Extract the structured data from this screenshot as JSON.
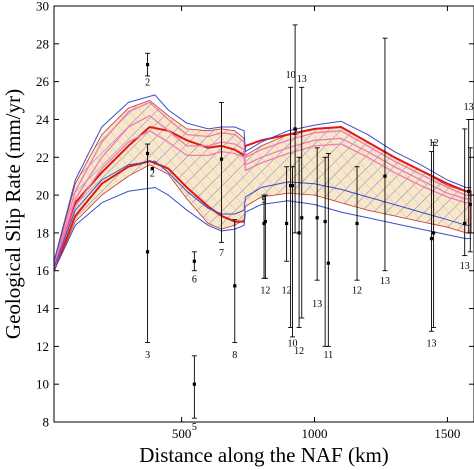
{
  "chart_data": {
    "type": "line",
    "xlabel": "Distance along the NAF (km)",
    "ylabel": "Geological Slip Rate (mm/yr)",
    "xlim": [
      20,
      1600
    ],
    "ylim": [
      8,
      30
    ],
    "x_ticks": [
      500,
      1000,
      1500
    ],
    "y_ticks": [
      8,
      10,
      12,
      14,
      16,
      18,
      20,
      22,
      24,
      26,
      28,
      30
    ],
    "grid": false,
    "legend": "none",
    "colors": {
      "band_fill": "#f7e8c8",
      "band_outline": "#c0392b",
      "red_line": "#e01818",
      "pink_line": "#f07ab5",
      "blue_line": "#3b4ec8"
    },
    "band": {
      "x": [
        20,
        100,
        200,
        300,
        380,
        450,
        520,
        600,
        650,
        700,
        735,
        740,
        800,
        900,
        1000,
        1100,
        1200,
        1300,
        1400,
        1500,
        1570,
        1590
      ],
      "upper": [
        16.4,
        20.6,
        23.2,
        24.6,
        25.0,
        24.2,
        23.5,
        23.4,
        23.5,
        23.4,
        23.0,
        22.1,
        22.6,
        23.2,
        23.5,
        23.6,
        22.8,
        22.0,
        21.3,
        20.5,
        20.2,
        20.2
      ],
      "lower": [
        16.0,
        18.6,
        20.0,
        21.0,
        21.6,
        21.1,
        19.8,
        18.5,
        18.2,
        18.4,
        18.7,
        19.4,
        19.9,
        20.1,
        20.0,
        19.6,
        19.2,
        18.9,
        18.6,
        18.3,
        18.0,
        18.0
      ]
    },
    "series": [
      {
        "line_style": "red",
        "x": [
          20,
          100,
          200,
          300,
          380,
          450,
          520,
          600,
          650,
          700,
          735,
          740,
          800,
          900,
          1000,
          1100,
          1200,
          1300,
          1400,
          1500,
          1570,
          1590
        ],
        "values": [
          16.2,
          19.6,
          21.2,
          22.6,
          23.6,
          23.4,
          22.9,
          22.5,
          22.6,
          22.4,
          22.1,
          22.6,
          22.9,
          23.2,
          23.5,
          23.6,
          22.8,
          22.0,
          21.3,
          20.6,
          20.2,
          20.2
        ]
      },
      {
        "line_style": "red",
        "x": [
          20,
          100,
          200,
          300,
          380,
          450,
          520,
          600,
          650,
          700,
          735
        ],
        "values": [
          16.0,
          18.9,
          20.6,
          21.5,
          21.8,
          21.4,
          20.4,
          19.4,
          18.9,
          18.6,
          18.6
        ]
      },
      {
        "line_style": "pink",
        "x": [
          20,
          100,
          200,
          300,
          380,
          450,
          520,
          600,
          650,
          700,
          735,
          740,
          800,
          900,
          1000,
          1100,
          1200,
          1300,
          1400,
          1500,
          1570,
          1590
        ],
        "values": [
          16.3,
          20.2,
          22.8,
          24.4,
          24.9,
          24.0,
          23.2,
          23.1,
          23.3,
          23.2,
          22.8,
          22.0,
          22.4,
          22.9,
          23.3,
          23.4,
          22.6,
          21.8,
          21.1,
          20.4,
          20.0,
          20.0
        ]
      },
      {
        "line_style": "pink",
        "x": [
          20,
          100,
          200,
          300,
          380,
          450,
          520,
          600,
          650,
          700,
          735,
          740,
          800,
          900,
          1000,
          1100,
          1200,
          1300,
          1400,
          1500,
          1570,
          1590
        ],
        "values": [
          16.2,
          19.8,
          22.0,
          23.6,
          24.2,
          23.4,
          22.6,
          22.6,
          22.8,
          22.7,
          22.4,
          21.6,
          22.0,
          22.5,
          22.9,
          23.0,
          22.3,
          21.5,
          20.8,
          20.1,
          19.8,
          19.8
        ]
      },
      {
        "line_style": "pink",
        "x": [
          20,
          100,
          200,
          300,
          380,
          450,
          520,
          600,
          650,
          700,
          735,
          740,
          800,
          900,
          1000,
          1100,
          1200,
          1300,
          1400,
          1500,
          1570,
          1590
        ],
        "values": [
          16.1,
          19.4,
          21.4,
          22.8,
          23.4,
          22.8,
          22.1,
          22.1,
          22.3,
          22.2,
          22.0,
          21.3,
          21.7,
          22.2,
          22.6,
          22.7,
          22.0,
          21.2,
          20.5,
          19.9,
          19.6,
          19.6
        ]
      },
      {
        "line_style": "blue",
        "x": [
          20,
          100,
          200,
          300,
          400,
          450,
          520,
          600,
          650,
          700,
          735,
          740,
          800,
          900,
          1000,
          1100,
          1200,
          1300,
          1400,
          1500,
          1570,
          1590
        ],
        "values": [
          16.5,
          20.8,
          23.6,
          24.9,
          25.3,
          24.5,
          23.8,
          23.5,
          23.6,
          23.6,
          23.4,
          22.3,
          22.8,
          23.4,
          23.7,
          23.9,
          23.2,
          22.3,
          21.6,
          20.8,
          20.4,
          20.4
        ]
      },
      {
        "line_style": "blue",
        "x": [
          20,
          100,
          200,
          300,
          400,
          450,
          520,
          600,
          650,
          700,
          735,
          740,
          800,
          900,
          1000,
          1100,
          1200,
          1300,
          1400,
          1500,
          1570,
          1590
        ],
        "values": [
          16.2,
          19.2,
          20.8,
          21.6,
          21.8,
          21.2,
          20.2,
          19.3,
          19.0,
          19.0,
          19.2,
          19.9,
          20.4,
          20.7,
          20.6,
          20.3,
          19.9,
          19.5,
          19.1,
          18.7,
          18.4,
          18.4
        ]
      },
      {
        "line_style": "blue",
        "x": [
          20,
          100,
          200,
          300,
          400,
          450,
          520,
          600,
          650,
          700,
          735,
          740,
          800,
          900,
          1000,
          1100,
          1200,
          1300,
          1400,
          1500,
          1570,
          1590
        ],
        "values": [
          16.0,
          18.4,
          19.6,
          20.2,
          20.4,
          20.0,
          19.2,
          18.4,
          18.1,
          18.2,
          18.4,
          19.1,
          19.5,
          19.7,
          19.5,
          19.1,
          18.8,
          18.5,
          18.2,
          17.9,
          17.7,
          17.7
        ]
      }
    ],
    "points": [
      {
        "x": 372,
        "y": 26.9,
        "lo": 26.3,
        "hi": 27.5,
        "label": "2",
        "ly": 26.0
      },
      {
        "x": 372,
        "y": 22.2,
        "lo": 12.2,
        "hi": 22.7,
        "label": "3",
        "ly": 11.6
      },
      {
        "x": 372,
        "y": 17.0,
        "lo": 17.0,
        "hi": 17.0,
        "label": "",
        "ly": 17.0
      },
      {
        "x": 390,
        "y": 21.4,
        "lo": 21.4,
        "hi": 21.4,
        "label": "2",
        "ly": 21.2
      },
      {
        "x": 548,
        "y": 16.5,
        "lo": 16.0,
        "hi": 17.0,
        "label": "6",
        "ly": 15.6
      },
      {
        "x": 548,
        "y": 10.0,
        "lo": 8.2,
        "hi": 11.5,
        "label": "5",
        "ly": 7.8
      },
      {
        "x": 650,
        "y": 21.9,
        "lo": 17.5,
        "hi": 24.9,
        "label": "7",
        "ly": 17.0
      },
      {
        "x": 700,
        "y": 15.2,
        "lo": 12.2,
        "hi": 18.7,
        "label": "8",
        "ly": 11.6
      },
      {
        "x": 810,
        "y": 18.5,
        "lo": 15.6,
        "hi": 20.0,
        "label": "9",
        "ly": 19.8
      },
      {
        "x": 815,
        "y": 18.6,
        "lo": 15.6,
        "hi": 20.0,
        "label": "12",
        "ly": 15.0
      },
      {
        "x": 895,
        "y": 18.5,
        "lo": 16.5,
        "hi": 21.5,
        "label": "12",
        "ly": 15.0
      },
      {
        "x": 910,
        "y": 20.5,
        "lo": 13.0,
        "hi": 25.7,
        "label": "10",
        "ly": 26.4
      },
      {
        "x": 917,
        "y": 20.5,
        "lo": 12.5,
        "hi": 21.5,
        "label": "10",
        "ly": 12.2
      },
      {
        "x": 927,
        "y": 23.5,
        "lo": 18.0,
        "hi": 29.0,
        "label": "2",
        "ly": 23.4
      },
      {
        "x": 942,
        "y": 18.0,
        "lo": 13.0,
        "hi": 22.0,
        "label": "12",
        "ly": 11.8
      },
      {
        "x": 952,
        "y": 18.8,
        "lo": 13.5,
        "hi": 25.7,
        "label": "13",
        "ly": 26.2
      },
      {
        "x": 1010,
        "y": 18.8,
        "lo": 15.5,
        "hi": 22.5,
        "label": "13",
        "ly": 14.3
      },
      {
        "x": 1040,
        "y": 18.6,
        "lo": 12.0,
        "hi": 22.0,
        "label": "",
        "ly": 18.6
      },
      {
        "x": 1052,
        "y": 16.4,
        "lo": 12.0,
        "hi": 22.2,
        "label": "11",
        "ly": 11.6
      },
      {
        "x": 1160,
        "y": 18.5,
        "lo": 15.5,
        "hi": 21.5,
        "label": "12",
        "ly": 15.0
      },
      {
        "x": 1265,
        "y": 21.0,
        "lo": 16.0,
        "hi": 28.3,
        "label": "13",
        "ly": 15.5
      },
      {
        "x": 1440,
        "y": 17.7,
        "lo": 12.8,
        "hi": 22.3,
        "label": "13",
        "ly": 12.2
      },
      {
        "x": 1448,
        "y": 18.0,
        "lo": 13.0,
        "hi": 22.8,
        "label": "12",
        "ly": 22.8
      },
      {
        "x": 1565,
        "y": 18.5,
        "lo": 16.8,
        "hi": 23.5,
        "label": "13",
        "ly": 16.3
      },
      {
        "x": 1580,
        "y": 20.2,
        "lo": 18.0,
        "hi": 24.0,
        "label": "13",
        "ly": 24.7
      },
      {
        "x": 1586,
        "y": 19.5,
        "lo": 17.0,
        "hi": 22.5,
        "label": "",
        "ly": 19.5
      }
    ]
  }
}
